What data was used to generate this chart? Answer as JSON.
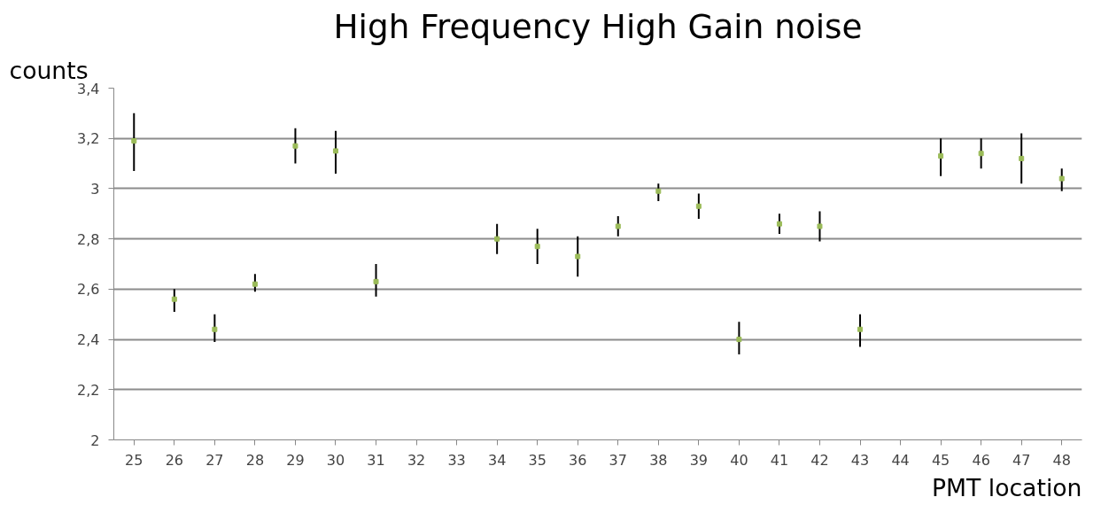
{
  "chart_data": {
    "type": "scatter",
    "title": "High Frequency High Gain noise",
    "xlabel": "PMT location",
    "ylabel": "counts",
    "categories": [
      "25",
      "26",
      "27",
      "28",
      "29",
      "30",
      "31",
      "32",
      "33",
      "34",
      "35",
      "36",
      "37",
      "38",
      "39",
      "40",
      "41",
      "42",
      "43",
      "44",
      "45",
      "46",
      "47",
      "48"
    ],
    "series": [
      {
        "color": "#9bbb59",
        "values": [
          3.19,
          2.56,
          2.44,
          2.62,
          3.17,
          3.15,
          2.63,
          null,
          null,
          2.8,
          2.77,
          2.73,
          2.85,
          2.99,
          2.93,
          2.4,
          2.86,
          2.85,
          2.44,
          null,
          3.13,
          3.14,
          3.12,
          3.04
        ],
        "errors": [
          [
            3.07,
            3.3
          ],
          [
            2.51,
            2.6
          ],
          [
            2.39,
            2.5
          ],
          [
            2.59,
            2.66
          ],
          [
            3.1,
            3.24
          ],
          [
            3.06,
            3.23
          ],
          [
            2.57,
            2.7
          ],
          null,
          null,
          [
            2.74,
            2.86
          ],
          [
            2.7,
            2.84
          ],
          [
            2.65,
            2.81
          ],
          [
            2.81,
            2.89
          ],
          [
            2.95,
            3.02
          ],
          [
            2.88,
            2.98
          ],
          [
            2.34,
            2.47
          ],
          [
            2.82,
            2.9
          ],
          [
            2.79,
            2.91
          ],
          [
            2.37,
            2.5
          ],
          null,
          [
            3.05,
            3.2
          ],
          [
            3.08,
            3.2
          ],
          [
            3.02,
            3.22
          ],
          [
            2.99,
            3.08
          ]
        ]
      }
    ],
    "ylim": [
      2,
      3.4
    ],
    "yticks": [
      {
        "value": 2,
        "label": "2"
      },
      {
        "value": 2.2,
        "label": "2,2"
      },
      {
        "value": 2.4,
        "label": "2,4"
      },
      {
        "value": 2.6,
        "label": "2,6"
      },
      {
        "value": 2.8,
        "label": "2,8"
      },
      {
        "value": 3,
        "label": "3"
      },
      {
        "value": 3.2,
        "label": "3,2"
      },
      {
        "value": 3.4,
        "label": "3,4"
      }
    ],
    "grid": "y",
    "marker": "square"
  }
}
